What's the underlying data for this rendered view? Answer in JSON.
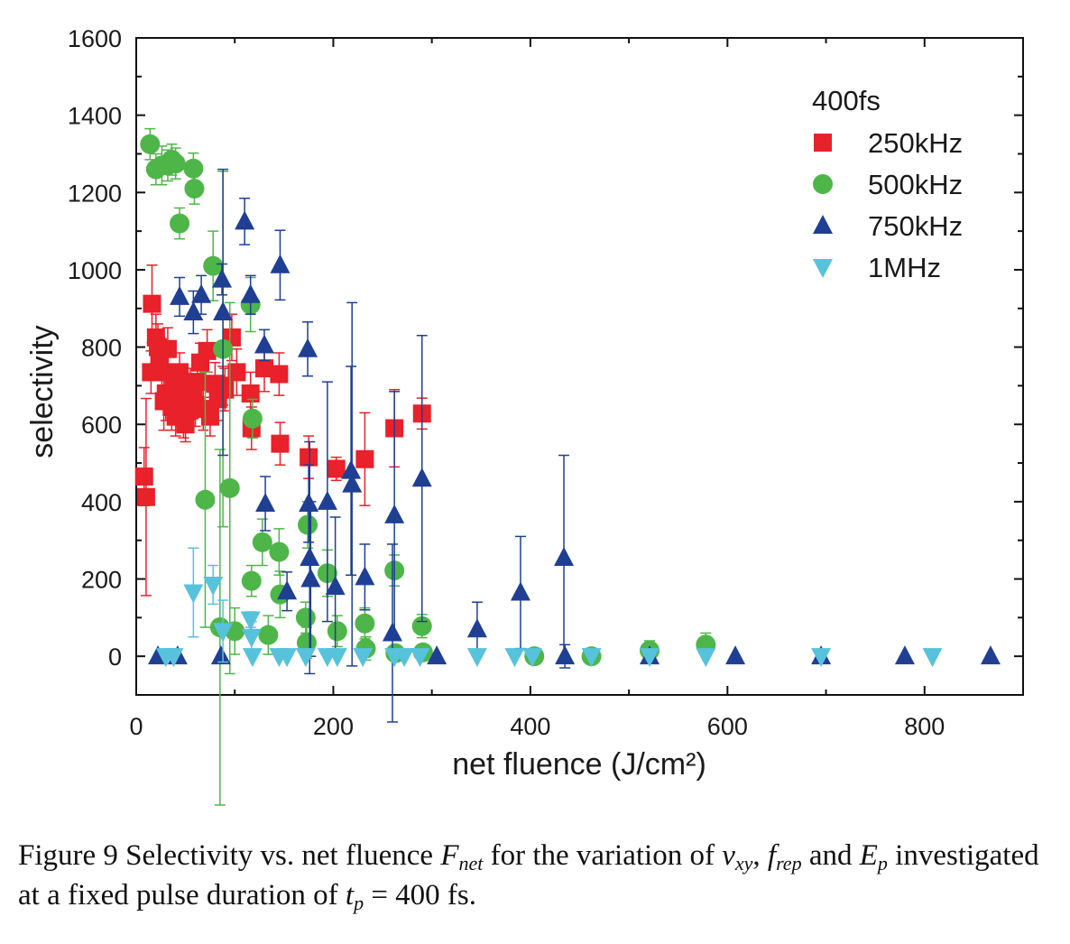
{
  "chart_data": {
    "type": "scatter",
    "xlabel": "net fluence (J/cm²)",
    "ylabel": "selectivity",
    "xlim": [
      0,
      900
    ],
    "ylim": [
      -100,
      1600
    ],
    "x_ticks": [
      0,
      200,
      400,
      600,
      800
    ],
    "y_ticks": [
      0,
      200,
      400,
      600,
      800,
      1000,
      1200,
      1400,
      1600
    ],
    "grid": false,
    "legend": {
      "title": "400fs",
      "position": "top-right"
    },
    "series": [
      {
        "name": "250kHz",
        "marker": "square",
        "color": "#e8212a",
        "points": [
          [
            8,
            465,
            75
          ],
          [
            10,
            412,
            255
          ],
          [
            15,
            735,
            55
          ],
          [
            16,
            912,
            100
          ],
          [
            20,
            825,
            60
          ],
          [
            22,
            800,
            60
          ],
          [
            24,
            770,
            55
          ],
          [
            26,
            735,
            60
          ],
          [
            28,
            660,
            75
          ],
          [
            30,
            680,
            70
          ],
          [
            32,
            795,
            55
          ],
          [
            36,
            645,
            60
          ],
          [
            38,
            690,
            60
          ],
          [
            40,
            620,
            50
          ],
          [
            44,
            735,
            50
          ],
          [
            46,
            655,
            60
          ],
          [
            48,
            620,
            55
          ],
          [
            50,
            600,
            45
          ],
          [
            52,
            635,
            55
          ],
          [
            55,
            690,
            55
          ],
          [
            58,
            665,
            50
          ],
          [
            60,
            650,
            55
          ],
          [
            62,
            710,
            50
          ],
          [
            65,
            760,
            50
          ],
          [
            68,
            640,
            55
          ],
          [
            72,
            790,
            55
          ],
          [
            75,
            620,
            50
          ],
          [
            80,
            705,
            55
          ],
          [
            83,
            665,
            55
          ],
          [
            88,
            700,
            50
          ],
          [
            90,
            690,
            55
          ],
          [
            97,
            825,
            60
          ],
          [
            102,
            735,
            60
          ],
          [
            116,
            680,
            55
          ],
          [
            117,
            590,
            55
          ],
          [
            130,
            745,
            60
          ],
          [
            145,
            730,
            55
          ],
          [
            146,
            550,
            55
          ],
          [
            175,
            515,
            55
          ],
          [
            203,
            485,
            30
          ],
          [
            232,
            510,
            120
          ],
          [
            262,
            590,
            100
          ],
          [
            290,
            628,
            40
          ]
        ]
      },
      {
        "name": "500kHz",
        "marker": "circle",
        "color": "#4eb649",
        "points": [
          [
            14,
            1325,
            40
          ],
          [
            20,
            1260,
            40
          ],
          [
            26,
            1270,
            50
          ],
          [
            32,
            1270,
            40
          ],
          [
            36,
            1285,
            40
          ],
          [
            40,
            1275,
            40
          ],
          [
            44,
            1120,
            40
          ],
          [
            58,
            1262,
            40
          ],
          [
            59,
            1210,
            40
          ],
          [
            70,
            405,
            330
          ],
          [
            78,
            1010,
            90
          ],
          [
            85,
            75,
            460
          ],
          [
            88,
            795,
            460
          ],
          [
            95,
            435,
            480
          ],
          [
            100,
            65,
            60
          ],
          [
            116,
            910,
            70
          ],
          [
            117,
            195,
            40
          ],
          [
            118,
            615,
            50
          ],
          [
            128,
            295,
            60
          ],
          [
            134,
            55,
            50
          ],
          [
            145,
            270,
            60
          ],
          [
            146,
            160,
            60
          ],
          [
            172,
            100,
            40
          ],
          [
            173,
            35,
            40
          ],
          [
            174,
            340,
            60
          ],
          [
            194,
            215,
            60
          ],
          [
            204,
            65,
            40
          ],
          [
            232,
            85,
            40
          ],
          [
            233,
            20,
            30
          ],
          [
            262,
            222,
            40
          ],
          [
            263,
            8,
            20
          ],
          [
            290,
            78,
            30
          ],
          [
            291,
            10,
            20
          ],
          [
            404,
            0,
            15
          ],
          [
            462,
            0,
            15
          ],
          [
            521,
            15,
            25
          ],
          [
            578,
            30,
            30
          ]
        ]
      },
      {
        "name": "750kHz",
        "marker": "triangle-up",
        "color": "#1f3f93",
        "points": [
          [
            22,
            0,
            0
          ],
          [
            42,
            0,
            0
          ],
          [
            44,
            930,
            50
          ],
          [
            58,
            890,
            55
          ],
          [
            66,
            935,
            50
          ],
          [
            86,
            0,
            0
          ],
          [
            87,
            975,
            40
          ],
          [
            88,
            890,
            370
          ],
          [
            110,
            1125,
            60
          ],
          [
            116,
            935,
            50
          ],
          [
            130,
            805,
            40
          ],
          [
            131,
            395,
            70
          ],
          [
            146,
            1012,
            90
          ],
          [
            153,
            168,
            50
          ],
          [
            174,
            795,
            70
          ],
          [
            175,
            395,
            100
          ],
          [
            176,
            255,
            300
          ],
          [
            177,
            200,
            200
          ],
          [
            194,
            400,
            310
          ],
          [
            202,
            180,
            180
          ],
          [
            218,
            480,
            270
          ],
          [
            219,
            445,
            470
          ],
          [
            232,
            205,
            85
          ],
          [
            260,
            60,
            230
          ],
          [
            262,
            365,
            320
          ],
          [
            290,
            460,
            370
          ],
          [
            305,
            0,
            0
          ],
          [
            346,
            70,
            70
          ],
          [
            390,
            165,
            145
          ],
          [
            434,
            255,
            265
          ],
          [
            435,
            0,
            30
          ],
          [
            521,
            0,
            0
          ],
          [
            608,
            0,
            0
          ],
          [
            695,
            0,
            0
          ],
          [
            780,
            0,
            0
          ],
          [
            867,
            0,
            0
          ]
        ]
      },
      {
        "name": "1MHz",
        "marker": "triangle-down",
        "color": "#57c2dc",
        "points": [
          [
            30,
            0,
            0
          ],
          [
            38,
            0,
            0
          ],
          [
            58,
            165,
            115
          ],
          [
            78,
            185,
            50
          ],
          [
            88,
            65,
            80
          ],
          [
            116,
            95,
            20
          ],
          [
            117,
            50,
            40
          ],
          [
            118,
            0,
            0
          ],
          [
            145,
            0,
            0
          ],
          [
            153,
            0,
            0
          ],
          [
            172,
            0,
            0
          ],
          [
            194,
            0,
            0
          ],
          [
            204,
            0,
            0
          ],
          [
            230,
            0,
            0
          ],
          [
            262,
            0,
            0
          ],
          [
            272,
            0,
            0
          ],
          [
            288,
            0,
            0
          ],
          [
            346,
            0,
            0
          ],
          [
            384,
            0,
            0
          ],
          [
            402,
            0,
            0
          ],
          [
            462,
            0,
            0
          ],
          [
            521,
            0,
            0
          ],
          [
            578,
            0,
            0
          ],
          [
            695,
            0,
            0
          ],
          [
            808,
            0,
            0
          ]
        ]
      }
    ]
  },
  "caption": {
    "prefix": "Figure 9 Selectivity vs. net fluence ",
    "F": "F",
    "F_sub": "net",
    "mid1": " for the variation of ",
    "v": "v",
    "v_sub": "xy",
    "comma": ", ",
    "f": "f",
    "f_sub": "rep",
    "and": " and ",
    "E": "E",
    "E_sub": "p",
    "mid2": " investigated at a fixed pulse duration of ",
    "t": "t",
    "t_sub": "p",
    "suffix": " = 400 fs."
  }
}
